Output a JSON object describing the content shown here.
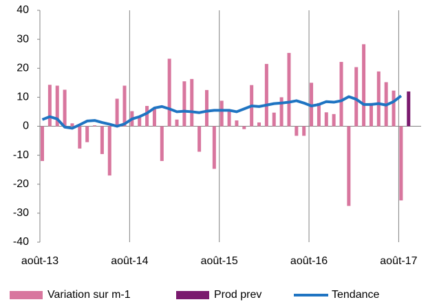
{
  "chart_data": {
    "type": "bar",
    "categories": [
      "août-13",
      null,
      null,
      null,
      null,
      null,
      null,
      null,
      null,
      null,
      null,
      null,
      "août-14",
      null,
      null,
      null,
      null,
      null,
      null,
      null,
      null,
      null,
      null,
      null,
      "août-15",
      null,
      null,
      null,
      null,
      null,
      null,
      null,
      null,
      null,
      null,
      null,
      "août-16",
      null,
      null,
      null,
      null,
      null,
      null,
      null,
      null,
      null,
      null,
      null,
      "août-17",
      null
    ],
    "series": [
      {
        "name": "Variation sur m-1",
        "type": "bar",
        "color": "#d8769e",
        "values": [
          -12,
          14.3,
          14,
          12.6,
          1,
          -7.7,
          -5.5,
          0.3,
          -9.6,
          -17,
          9.5,
          14,
          5.2,
          3,
          7,
          6,
          -12,
          23.3,
          2.3,
          15.5,
          16.3,
          -8.8,
          12.5,
          -14.7,
          8.8,
          5.5,
          2,
          -1,
          14.2,
          1.3,
          21.5,
          4.7,
          10,
          25.3,
          -3.3,
          -3.3,
          15,
          8,
          4.8,
          4.2,
          22.2,
          -27.5,
          20.4,
          28.3,
          8,
          18.9,
          15.2,
          12.3,
          -25.6,
          null
        ]
      },
      {
        "name": "Prod prev",
        "type": "bar",
        "color": "#7a1a6e",
        "values": [
          null,
          null,
          null,
          null,
          null,
          null,
          null,
          null,
          null,
          null,
          null,
          null,
          null,
          null,
          null,
          null,
          null,
          null,
          null,
          null,
          null,
          null,
          null,
          null,
          null,
          null,
          null,
          null,
          null,
          null,
          null,
          null,
          null,
          null,
          null,
          null,
          null,
          null,
          null,
          null,
          null,
          null,
          null,
          null,
          null,
          null,
          null,
          null,
          null,
          12
        ]
      },
      {
        "name": "Tendance",
        "type": "line",
        "color": "#1f74c2",
        "values": [
          2.3,
          3.3,
          2.5,
          -0.3,
          -0.7,
          0.5,
          1.8,
          2,
          1.3,
          0.7,
          0,
          0.8,
          2.5,
          3.3,
          4.5,
          6.3,
          6.8,
          6,
          5,
          5.2,
          5,
          4.7,
          5.2,
          5.5,
          5.5,
          5.5,
          5,
          6,
          7,
          6.8,
          7.3,
          7.8,
          8,
          8.3,
          8.8,
          8,
          7,
          7.5,
          8.5,
          8.3,
          8.8,
          10.2,
          9.3,
          7.5,
          7.5,
          7.8,
          7.3,
          8.5,
          10.5,
          null
        ]
      }
    ],
    "ylim": [
      -40,
      40
    ],
    "yticks": [
      -40,
      -30,
      -20,
      -10,
      0,
      10,
      20,
      30,
      40
    ],
    "grid": "x",
    "legend": "bottom"
  }
}
